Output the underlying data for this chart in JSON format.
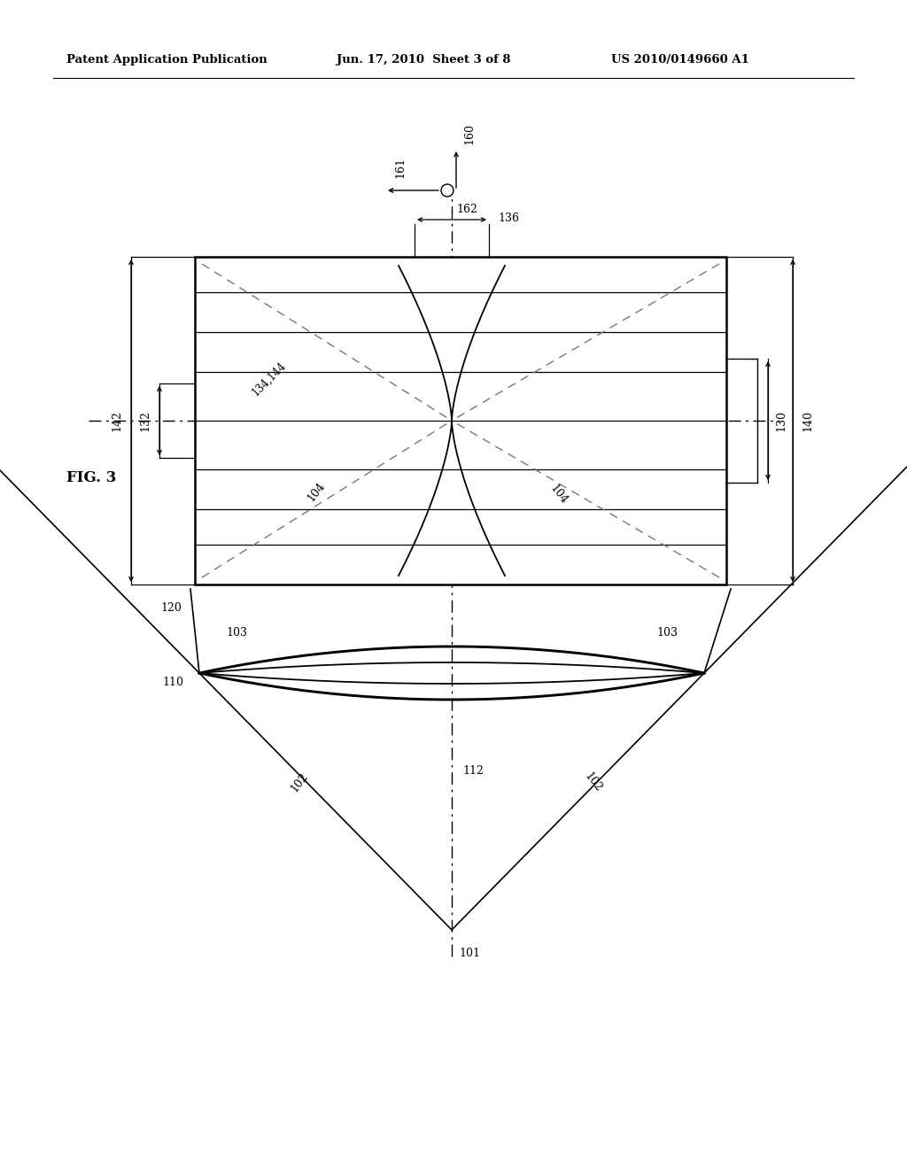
{
  "bg_color": "#ffffff",
  "header_left": "Patent Application Publication",
  "header_mid": "Jun. 17, 2010  Sheet 3 of 8",
  "header_right": "US 2010/0149660 A1",
  "fig_label": "FIG. 3",
  "line_color": "#000000",
  "lw_main": 1.8,
  "lw_thin": 1.0,
  "lw_dim": 0.9
}
